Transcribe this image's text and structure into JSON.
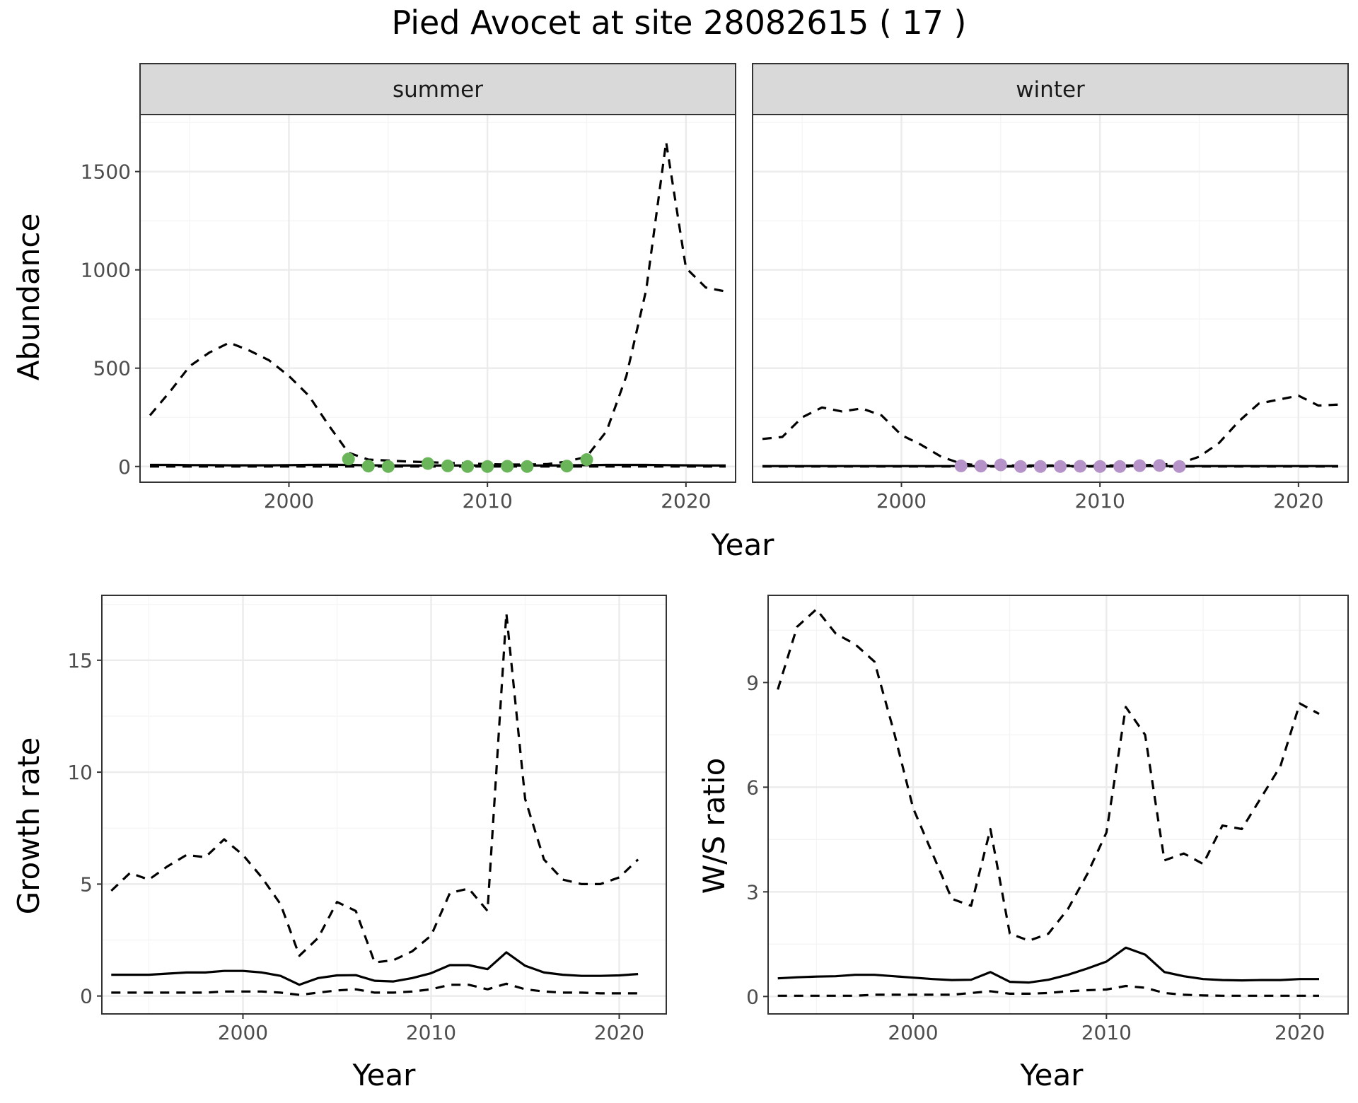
{
  "figure": {
    "title": "Pied Avocet at site 28082615 ( 17 )"
  },
  "colors": {
    "summer_points": "#6ab55a",
    "winter_points": "#b593c8",
    "lines": "#000000"
  },
  "chart_data": [
    {
      "id": "abundance",
      "type": "line",
      "facets": [
        "summer",
        "winter"
      ],
      "xlabel": "Year",
      "ylabel": "Abundance",
      "xlim": [
        1992.5,
        2022.5
      ],
      "ylim": [
        -80,
        1790
      ],
      "xticks": [
        2000,
        2010,
        2020
      ],
      "yticks": [
        0,
        500,
        1000,
        1500
      ],
      "grid": true,
      "line_styles": {
        "solid": "estimate",
        "dashed": "confidence bounds"
      },
      "panels": [
        {
          "facet": "summer",
          "x": [
            1993,
            1994,
            1995,
            1996,
            1997,
            1998,
            1999,
            2000,
            2001,
            2002,
            2003,
            2004,
            2005,
            2006,
            2007,
            2008,
            2009,
            2010,
            2011,
            2012,
            2013,
            2014,
            2015,
            2016,
            2017,
            2018,
            2019,
            2020,
            2021,
            2022
          ],
          "estimate": [
            8,
            8,
            7,
            7,
            6,
            6,
            6,
            7,
            8,
            9,
            8,
            6,
            5,
            5,
            5,
            5,
            5,
            5,
            5,
            5,
            5,
            6,
            7,
            8,
            8,
            8,
            7,
            6,
            5,
            5
          ],
          "upper": [
            260,
            380,
            510,
            580,
            630,
            590,
            540,
            460,
            360,
            210,
            70,
            35,
            30,
            25,
            22,
            18,
            15,
            12,
            10,
            10,
            12,
            25,
            50,
            180,
            460,
            900,
            1650,
            1010,
            910,
            890
          ],
          "lower": [
            0,
            0,
            0,
            0,
            0,
            0,
            0,
            0,
            0,
            0,
            0,
            0,
            0,
            0,
            0,
            0,
            0,
            0,
            0,
            0,
            0,
            0,
            0,
            0,
            0,
            0,
            0,
            0,
            0,
            0
          ],
          "points": {
            "x": [
              2003,
              2004,
              2005,
              2007,
              2008,
              2009,
              2010,
              2011,
              2012,
              2014,
              2015
            ],
            "y": [
              38,
              2,
              0,
              15,
              3,
              0,
              0,
              1,
              0,
              2,
              35
            ]
          }
        },
        {
          "facet": "winter",
          "x": [
            1993,
            1994,
            1995,
            1996,
            1997,
            1998,
            1999,
            2000,
            2001,
            2002,
            2003,
            2004,
            2005,
            2006,
            2007,
            2008,
            2009,
            2010,
            2011,
            2012,
            2013,
            2014,
            2015,
            2016,
            2017,
            2018,
            2019,
            2020,
            2021,
            2022
          ],
          "estimate": [
            2,
            2,
            2,
            2,
            2,
            2,
            2,
            2,
            2,
            2,
            2,
            2,
            2,
            2,
            2,
            2,
            2,
            2,
            2,
            2,
            2,
            2,
            2,
            2,
            2,
            2,
            2,
            2,
            2,
            2
          ],
          "upper": [
            140,
            150,
            250,
            300,
            280,
            295,
            260,
            160,
            110,
            50,
            15,
            5,
            5,
            5,
            5,
            5,
            5,
            5,
            5,
            5,
            10,
            15,
            50,
            120,
            230,
            320,
            340,
            360,
            310,
            315
          ],
          "lower": [
            0,
            0,
            0,
            0,
            0,
            0,
            0,
            0,
            0,
            0,
            0,
            0,
            0,
            0,
            0,
            0,
            0,
            0,
            0,
            0,
            0,
            0,
            0,
            0,
            0,
            0,
            0,
            0,
            0,
            0
          ],
          "points": {
            "x": [
              2003,
              2004,
              2005,
              2006,
              2007,
              2008,
              2009,
              2010,
              2011,
              2012,
              2013,
              2014
            ],
            "y": [
              3,
              2,
              8,
              0,
              0,
              0,
              1,
              0,
              0,
              4,
              5,
              0
            ]
          }
        }
      ]
    },
    {
      "id": "growth",
      "type": "line",
      "xlabel": "Year",
      "ylabel": "Growth rate",
      "xlim": [
        1992.5,
        2022.5
      ],
      "ylim": [
        -0.8,
        17.9
      ],
      "xticks": [
        2000,
        2010,
        2020
      ],
      "yticks": [
        0,
        5,
        10,
        15
      ],
      "grid": true,
      "x": [
        1993,
        1994,
        1995,
        1996,
        1997,
        1998,
        1999,
        2000,
        2001,
        2002,
        2003,
        2004,
        2005,
        2006,
        2007,
        2008,
        2009,
        2010,
        2011,
        2012,
        2013,
        2014,
        2015,
        2016,
        2017,
        2018,
        2019,
        2020,
        2021
      ],
      "estimate": [
        0.95,
        0.95,
        0.95,
        1.0,
        1.05,
        1.05,
        1.12,
        1.12,
        1.05,
        0.9,
        0.5,
        0.8,
        0.92,
        0.93,
        0.68,
        0.65,
        0.8,
        1.02,
        1.38,
        1.38,
        1.2,
        1.95,
        1.35,
        1.05,
        0.95,
        0.9,
        0.9,
        0.92,
        0.98
      ],
      "upper": [
        4.7,
        5.5,
        5.2,
        5.8,
        6.3,
        6.2,
        7.0,
        6.3,
        5.3,
        4.1,
        1.8,
        2.6,
        4.2,
        3.8,
        1.5,
        1.6,
        2.0,
        2.7,
        4.6,
        4.8,
        3.8,
        17.1,
        8.8,
        6.1,
        5.2,
        5.0,
        5.0,
        5.3,
        6.1
      ],
      "lower": [
        0.15,
        0.15,
        0.15,
        0.15,
        0.15,
        0.15,
        0.2,
        0.2,
        0.2,
        0.15,
        0.05,
        0.15,
        0.25,
        0.3,
        0.15,
        0.15,
        0.2,
        0.3,
        0.5,
        0.5,
        0.3,
        0.55,
        0.3,
        0.2,
        0.15,
        0.15,
        0.12,
        0.12,
        0.12
      ]
    },
    {
      "id": "ratio",
      "type": "line",
      "xlabel": "Year",
      "ylabel": "W/S ratio",
      "xlim": [
        1992.5,
        2022.5
      ],
      "ylim": [
        -0.5,
        11.5
      ],
      "xticks": [
        2000,
        2010,
        2020
      ],
      "yticks": [
        0,
        3,
        6,
        9
      ],
      "grid": true,
      "x": [
        1993,
        1994,
        1995,
        1996,
        1997,
        1998,
        1999,
        2000,
        2001,
        2002,
        2003,
        2004,
        2005,
        2006,
        2007,
        2008,
        2009,
        2010,
        2011,
        2012,
        2013,
        2014,
        2015,
        2016,
        2017,
        2018,
        2019,
        2020,
        2021
      ],
      "estimate": [
        0.52,
        0.55,
        0.57,
        0.58,
        0.62,
        0.62,
        0.58,
        0.54,
        0.5,
        0.47,
        0.48,
        0.7,
        0.42,
        0.4,
        0.48,
        0.62,
        0.8,
        1.0,
        1.4,
        1.2,
        0.7,
        0.58,
        0.5,
        0.47,
        0.46,
        0.47,
        0.47,
        0.5,
        0.5
      ],
      "upper": [
        8.8,
        10.6,
        11.1,
        10.4,
        10.1,
        9.6,
        7.6,
        5.4,
        4.1,
        2.8,
        2.6,
        4.8,
        1.8,
        1.6,
        1.8,
        2.5,
        3.5,
        4.7,
        8.3,
        7.5,
        3.9,
        4.1,
        3.8,
        4.9,
        4.8,
        5.7,
        6.6,
        8.4,
        8.1
      ],
      "lower": [
        0.02,
        0.02,
        0.02,
        0.02,
        0.02,
        0.05,
        0.05,
        0.05,
        0.05,
        0.05,
        0.1,
        0.15,
        0.08,
        0.08,
        0.1,
        0.15,
        0.18,
        0.2,
        0.3,
        0.25,
        0.1,
        0.05,
        0.03,
        0.02,
        0.02,
        0.02,
        0.02,
        0.02,
        0.02
      ]
    }
  ]
}
